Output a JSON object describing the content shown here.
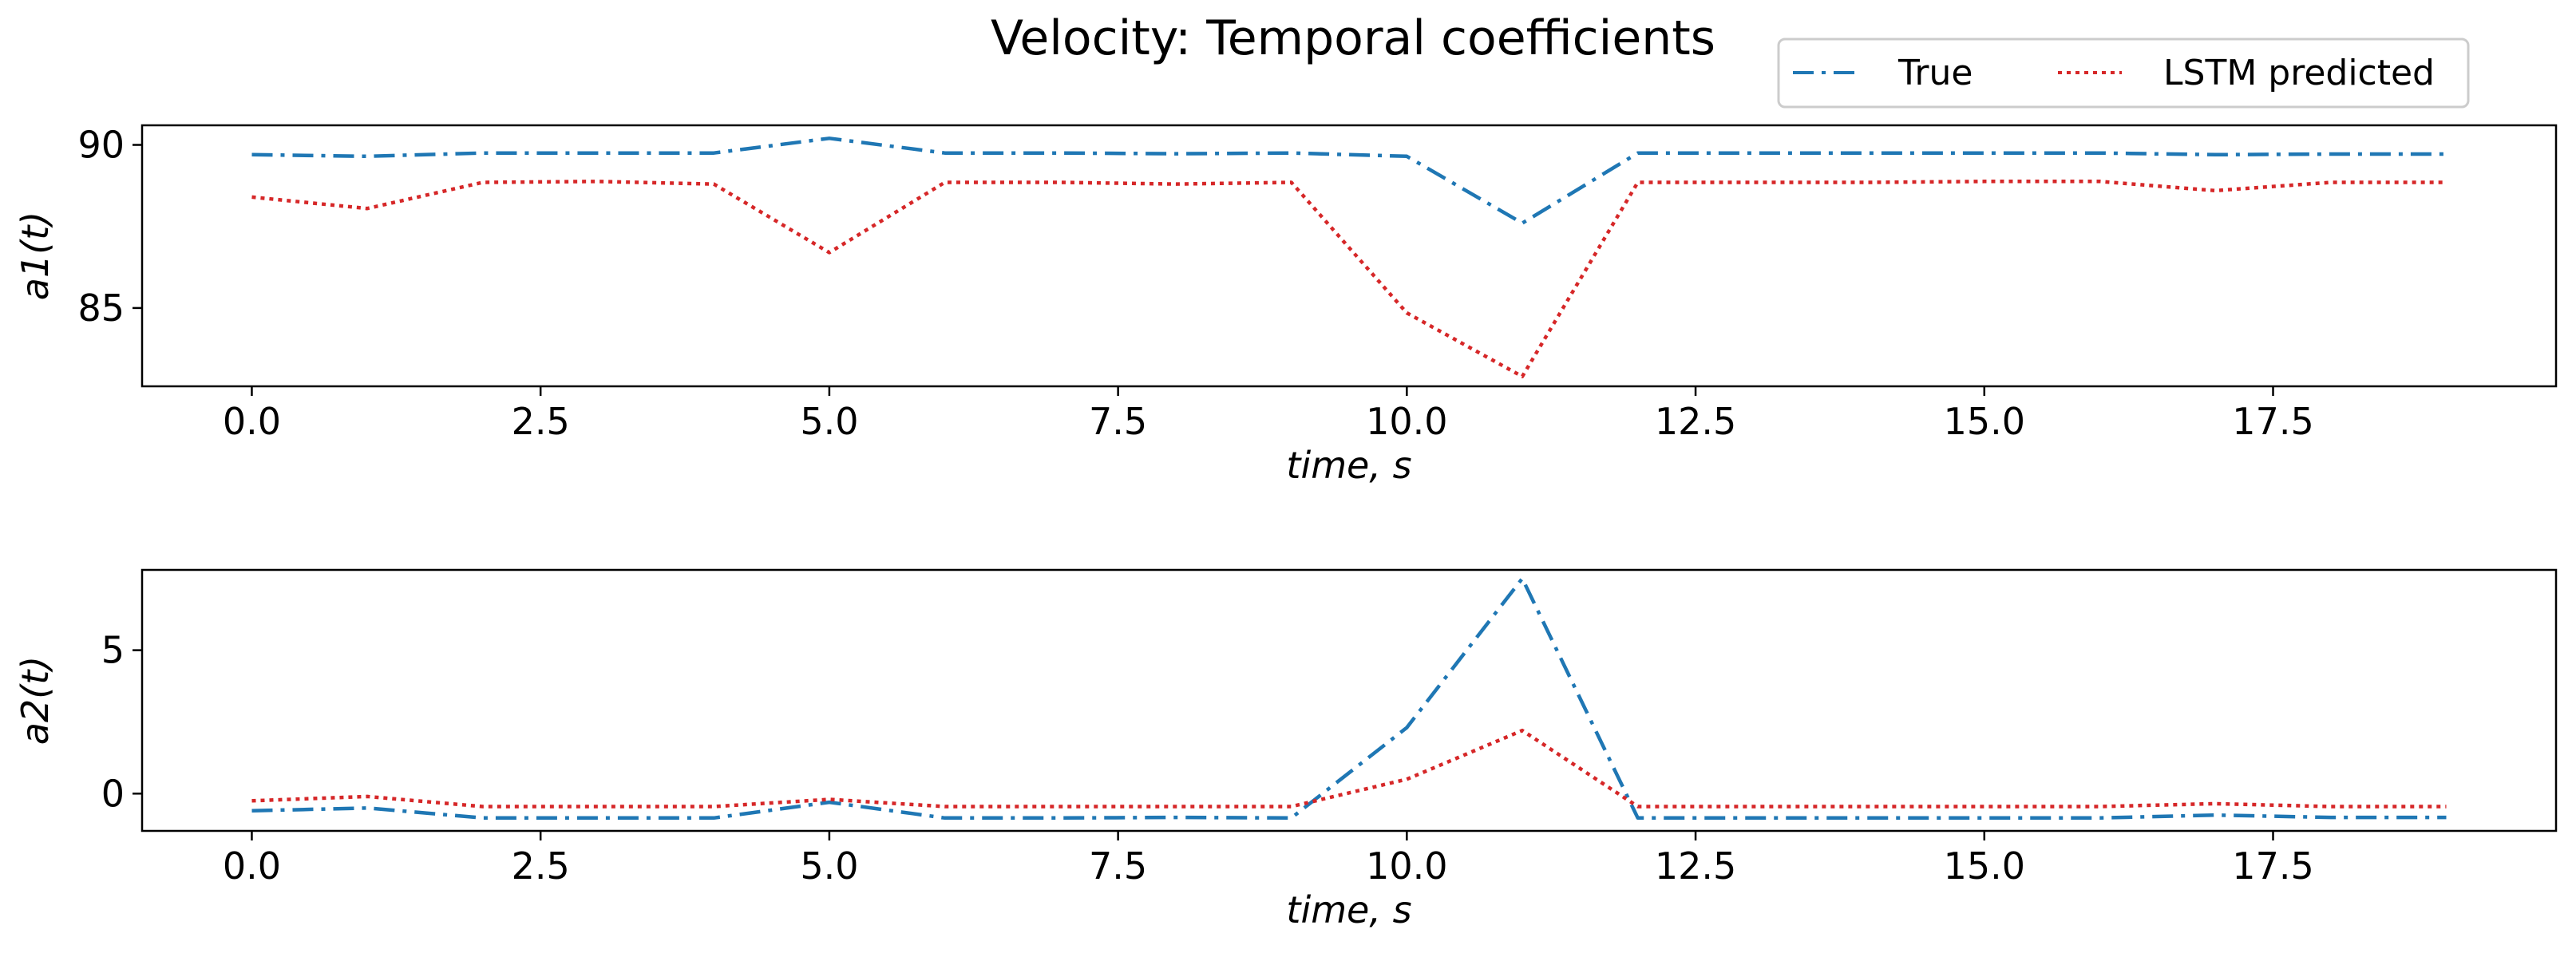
{
  "figure_title": "Velocity: Temporal coefficients",
  "legend": [
    {
      "label": "True",
      "color": "#1f77b4",
      "style": "dashdot"
    },
    {
      "label": "LSTM predicted",
      "color": "#d62728",
      "style": "dotted"
    }
  ],
  "chart_data": [
    {
      "type": "line",
      "title": "",
      "xlabel": "time, s",
      "ylabel": "a1(t)",
      "xlim": [
        -0.95,
        19.95
      ],
      "ylim": [
        82.6,
        90.6
      ],
      "xticks": [
        0.0,
        2.5,
        5.0,
        7.5,
        10.0,
        12.5,
        15.0,
        17.5
      ],
      "xtick_labels": [
        "0.0",
        "2.5",
        "5.0",
        "7.5",
        "10.0",
        "12.5",
        "15.0",
        "17.5"
      ],
      "yticks": [
        85,
        90
      ],
      "ytick_labels": [
        "85",
        "90"
      ],
      "grid": false,
      "x": [
        0,
        1,
        2,
        3,
        4,
        5,
        6,
        7,
        8,
        9,
        10,
        11,
        12,
        13,
        14,
        15,
        16,
        17,
        18,
        19
      ],
      "series": [
        {
          "name": "True",
          "color": "#1f77b4",
          "style": "dashdot",
          "values": [
            89.7,
            89.65,
            89.75,
            89.75,
            89.75,
            90.2,
            89.75,
            89.75,
            89.73,
            89.75,
            89.65,
            87.6,
            89.75,
            89.75,
            89.75,
            89.75,
            89.75,
            89.7,
            89.72,
            89.72
          ]
        },
        {
          "name": "LSTM predicted",
          "color": "#d62728",
          "style": "dotted",
          "values": [
            88.4,
            88.05,
            88.85,
            88.88,
            88.8,
            86.7,
            88.85,
            88.85,
            88.8,
            88.85,
            84.85,
            82.9,
            88.85,
            88.85,
            88.85,
            88.88,
            88.88,
            88.6,
            88.85,
            88.85
          ]
        }
      ]
    },
    {
      "type": "line",
      "title": "",
      "xlabel": "time, s",
      "ylabel": "a2(t)",
      "xlim": [
        -0.95,
        19.95
      ],
      "ylim": [
        -1.3,
        7.8
      ],
      "xticks": [
        0.0,
        2.5,
        5.0,
        7.5,
        10.0,
        12.5,
        15.0,
        17.5
      ],
      "xtick_labels": [
        "0.0",
        "2.5",
        "5.0",
        "7.5",
        "10.0",
        "12.5",
        "15.0",
        "17.5"
      ],
      "yticks": [
        0,
        5
      ],
      "ytick_labels": [
        "0",
        "5"
      ],
      "grid": false,
      "x": [
        0,
        1,
        2,
        3,
        4,
        5,
        6,
        7,
        8,
        9,
        10,
        11,
        12,
        13,
        14,
        15,
        16,
        17,
        18,
        19
      ],
      "series": [
        {
          "name": "True",
          "color": "#1f77b4",
          "style": "dashdot",
          "values": [
            -0.6,
            -0.5,
            -0.85,
            -0.85,
            -0.85,
            -0.3,
            -0.85,
            -0.85,
            -0.83,
            -0.85,
            2.3,
            7.5,
            -0.85,
            -0.85,
            -0.85,
            -0.85,
            -0.85,
            -0.75,
            -0.83,
            -0.83
          ]
        },
        {
          "name": "LSTM predicted",
          "color": "#d62728",
          "style": "dotted",
          "values": [
            -0.25,
            -0.1,
            -0.45,
            -0.45,
            -0.45,
            -0.2,
            -0.45,
            -0.45,
            -0.45,
            -0.45,
            0.5,
            2.2,
            -0.45,
            -0.45,
            -0.45,
            -0.45,
            -0.45,
            -0.35,
            -0.45,
            -0.45
          ]
        }
      ]
    }
  ]
}
